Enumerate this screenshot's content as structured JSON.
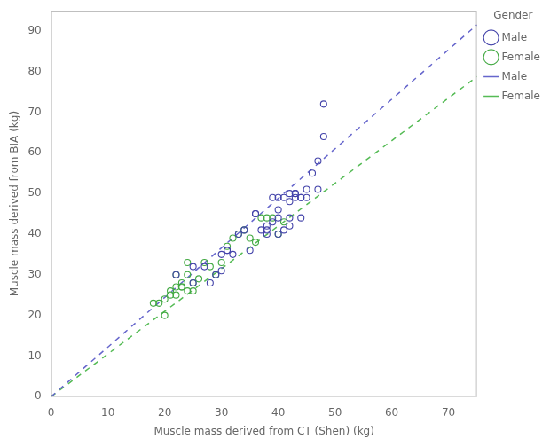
{
  "chart_data": {
    "type": "scatter",
    "xlabel": "Muscle mass derived from CT (Shen) (kg)",
    "ylabel": "Muscle mass derived from BIA (kg)",
    "xlim": [
      0,
      75
    ],
    "ylim": [
      0,
      95
    ],
    "xticks": [
      0,
      10,
      20,
      30,
      40,
      50,
      60,
      70
    ],
    "yticks": [
      0,
      10,
      20,
      30,
      40,
      50,
      60,
      70,
      80,
      90
    ],
    "grid": false,
    "legend": "right",
    "legend_title": "Gender",
    "series": [
      {
        "name": "Male",
        "type": "scatter",
        "marker": "circle",
        "color": "#4444aa",
        "x": [
          22,
          25,
          25,
          27,
          28,
          29,
          30,
          30,
          31,
          31,
          32,
          33,
          34,
          35,
          36,
          36,
          37,
          38,
          38,
          38,
          39,
          39,
          40,
          40,
          40,
          41,
          41,
          42,
          42,
          42,
          43,
          43,
          44,
          44,
          45,
          46,
          47,
          47,
          48,
          48,
          40,
          42,
          43,
          44,
          45
        ],
        "values": [
          30,
          28,
          32,
          32,
          28,
          30,
          31,
          35,
          36,
          36,
          35,
          40,
          41,
          36,
          45,
          45,
          41,
          40,
          41,
          42,
          43,
          49,
          44,
          46,
          49,
          41,
          49,
          44,
          48,
          50,
          49,
          50,
          44,
          49,
          51,
          55,
          58,
          51,
          64,
          72,
          40,
          42,
          50,
          49,
          49
        ]
      },
      {
        "name": "Female",
        "type": "scatter",
        "marker": "circle",
        "color": "#44aa44",
        "x": [
          18,
          19,
          20,
          20,
          21,
          21,
          22,
          22,
          22,
          23,
          23,
          23,
          24,
          24,
          24,
          25,
          25,
          26,
          27,
          28,
          29,
          30,
          31,
          32,
          33,
          34,
          35,
          36,
          37,
          38,
          39,
          40,
          41
        ],
        "values": [
          23,
          23,
          20,
          24,
          25,
          26,
          25,
          27,
          30,
          27,
          27,
          28,
          26,
          30,
          33,
          26,
          28,
          29,
          33,
          32,
          30,
          33,
          37,
          39,
          40,
          41,
          39,
          38,
          44,
          44,
          44,
          40,
          43
        ]
      },
      {
        "name": "Male",
        "type": "line",
        "line_style": "dashed",
        "color": "#6666cc",
        "x": [
          0,
          75
        ],
        "values": [
          0,
          91.5
        ]
      },
      {
        "name": "Female",
        "type": "line",
        "line_style": "dashed",
        "color": "#55bb55",
        "x": [
          0,
          75
        ],
        "values": [
          0,
          78.75
        ]
      }
    ]
  }
}
